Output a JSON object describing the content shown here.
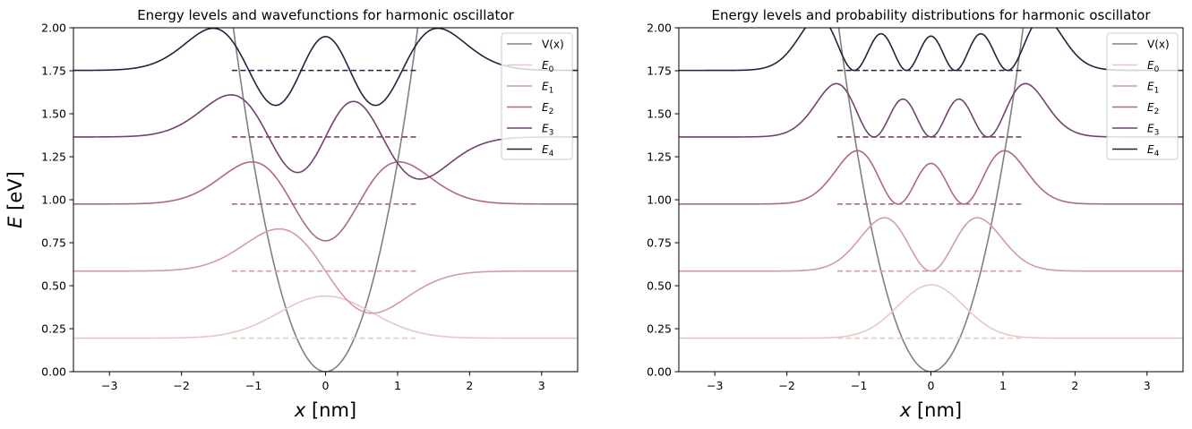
{
  "chart_data": [
    {
      "type": "line",
      "title": "Energy levels and wavefunctions for harmonic oscillator",
      "xlabel_var": "x",
      "xlabel_unit": " [nm]",
      "ylabel_var": "E",
      "ylabel_unit": " [eV]",
      "xlim": [
        -3.5,
        3.5
      ],
      "ylim": [
        0,
        2
      ],
      "xticks": [
        -3,
        -2,
        -1,
        0,
        1,
        2,
        3
      ],
      "xtick_labels": [
        "−3",
        "−2",
        "−1",
        "0",
        "1",
        "2",
        "3"
      ],
      "yticks": [
        0,
        0.25,
        0.5,
        0.75,
        1.0,
        1.25,
        1.5,
        1.75,
        2.0
      ],
      "ytick_labels": [
        "0.00",
        "0.25",
        "0.50",
        "0.75",
        "1.00",
        "1.25",
        "1.50",
        "1.75",
        "2.00"
      ],
      "grid": false,
      "legend_position": "top-right",
      "potential": {
        "name": "V(x)",
        "color": "#808080",
        "curvature": 1.22
      },
      "plot_kind": "wavefunction",
      "amplitude": 0.245,
      "turning_point_level_extent": 1.3,
      "series": [
        {
          "name": "E",
          "sub": "0",
          "level": 0.195,
          "color": "#e8c8c2"
        },
        {
          "name": "E",
          "sub": "1",
          "level": 0.585,
          "color": "#d39aab"
        },
        {
          "name": "E",
          "sub": "2",
          "level": 0.975,
          "color": "#ae6885"
        },
        {
          "name": "E",
          "sub": "3",
          "level": 1.365,
          "color": "#74406e"
        },
        {
          "name": "E",
          "sub": "4",
          "level": 1.752,
          "color": "#2b1e3e"
        }
      ]
    },
    {
      "type": "line",
      "title": "Energy levels and probability distributions for harmonic oscillator",
      "xlabel_var": "x",
      "xlabel_unit": " [nm]",
      "ylabel_var": "",
      "ylabel_unit": "",
      "xlim": [
        -3.5,
        3.5
      ],
      "ylim": [
        0,
        2
      ],
      "xticks": [
        -3,
        -2,
        -1,
        0,
        1,
        2,
        3
      ],
      "xtick_labels": [
        "−3",
        "−2",
        "−1",
        "0",
        "1",
        "2",
        "3"
      ],
      "yticks": [
        0,
        0.25,
        0.5,
        0.75,
        1.0,
        1.25,
        1.5,
        1.75,
        2.0
      ],
      "ytick_labels": [
        "0.00",
        "0.25",
        "0.50",
        "0.75",
        "1.00",
        "1.25",
        "1.50",
        "1.75",
        "2.00"
      ],
      "grid": false,
      "legend_position": "top-right",
      "potential": {
        "name": "V(x)",
        "color": "#808080",
        "curvature": 1.22
      },
      "plot_kind": "probability",
      "amplitude": 0.31,
      "turning_point_level_extent": 1.3,
      "series": [
        {
          "name": "E",
          "sub": "0",
          "level": 0.195,
          "color": "#e8c8c2"
        },
        {
          "name": "E",
          "sub": "1",
          "level": 0.585,
          "color": "#d39aab"
        },
        {
          "name": "E",
          "sub": "2",
          "level": 0.975,
          "color": "#ae6885"
        },
        {
          "name": "E",
          "sub": "3",
          "level": 1.365,
          "color": "#74406e"
        },
        {
          "name": "E",
          "sub": "4",
          "level": 1.752,
          "color": "#2b1e3e"
        }
      ]
    }
  ]
}
